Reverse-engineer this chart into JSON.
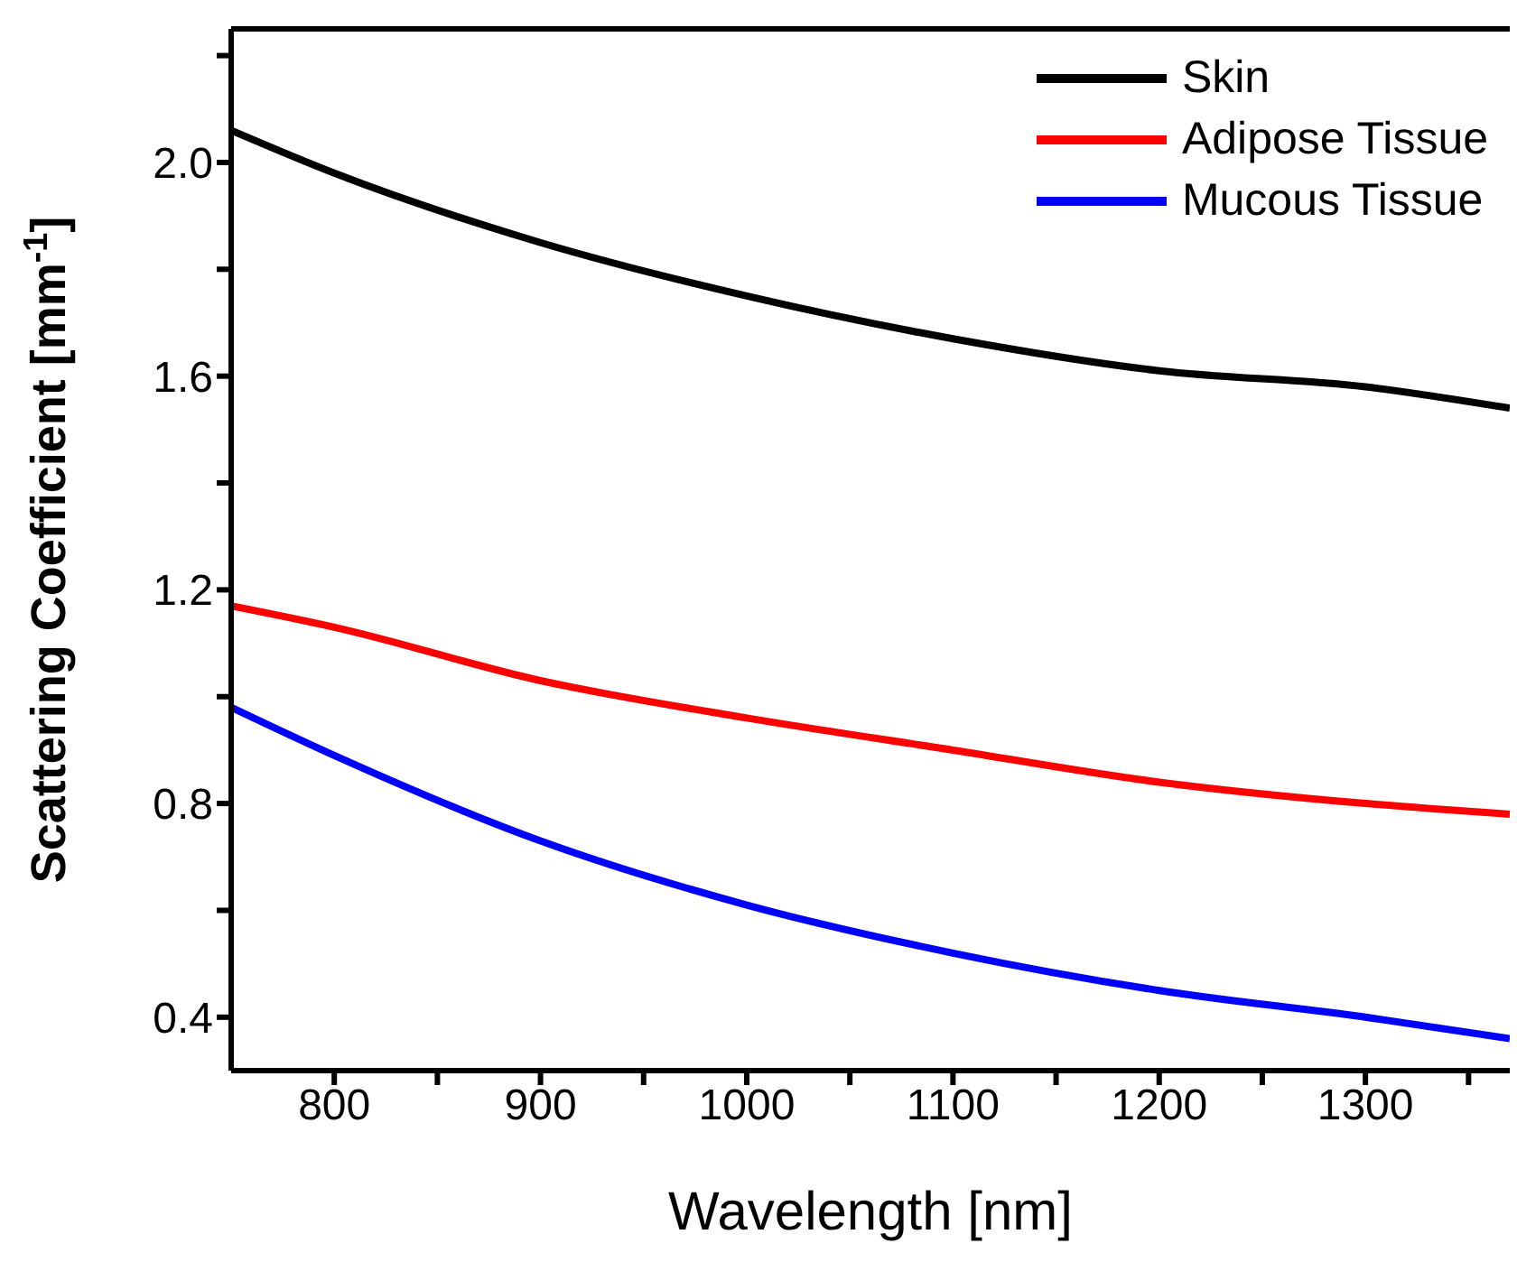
{
  "chart_data": {
    "type": "line",
    "xlabel": "Wavelength [nm]",
    "ylabel": "Scattering Coefficient [mm$^{-1}$]",
    "x": [
      750,
      800,
      900,
      1000,
      1100,
      1200,
      1300,
      1370
    ],
    "series": [
      {
        "name": "Skin",
        "color": "#000000",
        "values": [
          2.06,
          1.98,
          1.85,
          1.75,
          1.67,
          1.61,
          1.58,
          1.54
        ]
      },
      {
        "name": "Adipose Tissue",
        "color": "#ff0000",
        "values": [
          1.17,
          1.13,
          1.03,
          0.96,
          0.9,
          0.84,
          0.8,
          0.78
        ]
      },
      {
        "name": "Mucous Tissue",
        "color": "#0000ff",
        "values": [
          0.98,
          0.89,
          0.73,
          0.61,
          0.52,
          0.45,
          0.4,
          0.36
        ]
      }
    ],
    "xlim": [
      750,
      1370
    ],
    "xticks": [
      800,
      {
        "value": 850,
        "label": null
      },
      900,
      {
        "value": 950,
        "label": null
      },
      1000,
      {
        "value": 1050,
        "label": null
      },
      1100,
      {
        "value": 1150,
        "label": null
      },
      1200,
      {
        "value": 1250,
        "label": null
      },
      1300,
      {
        "value": 1350,
        "label": null
      }
    ],
    "ylim": [
      0.3,
      2.25
    ],
    "yticks": [
      {
        "value": 0.4,
        "label": "0.4"
      },
      {
        "value": 0.6,
        "label": null
      },
      {
        "value": 0.8,
        "label": "0.8"
      },
      {
        "value": 1.0,
        "label": null
      },
      {
        "value": 1.2,
        "label": "1.2"
      },
      {
        "value": 1.4,
        "label": null
      },
      {
        "value": 1.6,
        "label": "1.6"
      },
      {
        "value": 1.8,
        "label": null
      },
      {
        "value": 2.0,
        "label": "2.0"
      },
      {
        "value": 2.2,
        "label": null
      }
    ],
    "grid": false,
    "legend": "top right",
    "marker": "none",
    "line_style": "solid"
  }
}
